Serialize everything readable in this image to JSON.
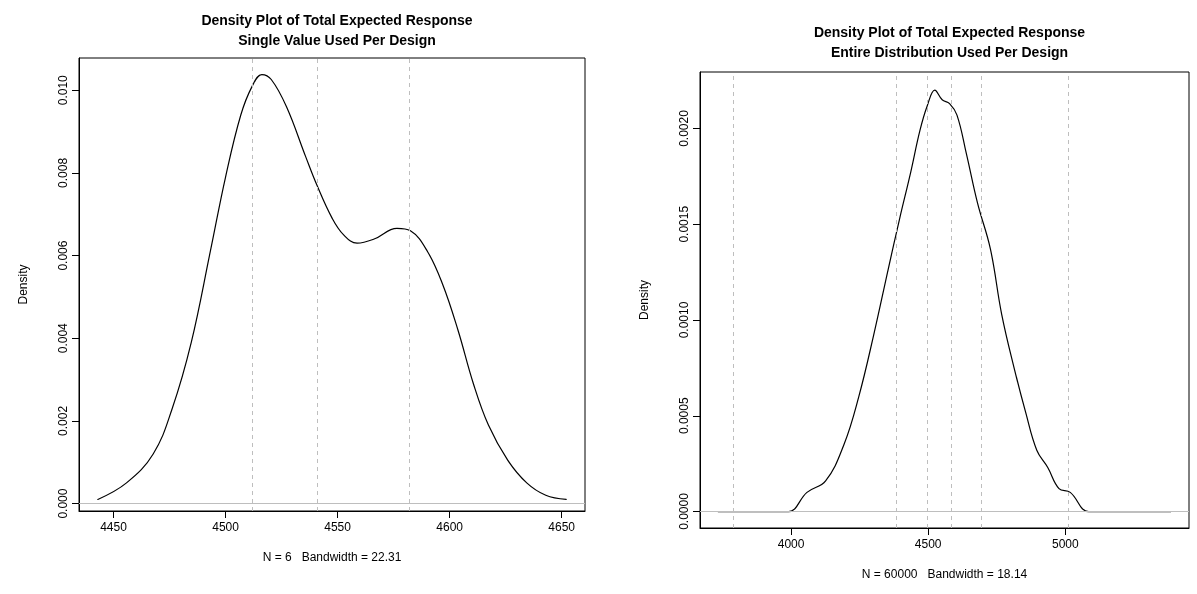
{
  "chart_data": [
    {
      "type": "line",
      "title": "Density Plot of Total Expected Response",
      "subtitle": "Single Value Used Per Design",
      "xlabel": "N = 6   Bandwidth = 22.31",
      "ylabel": "Density",
      "marker": "none",
      "line_style": "solid",
      "grid": false,
      "xlim": [
        4434.6,
        4660.4
      ],
      "xticks": [
        4450,
        4500,
        4550,
        4600,
        4650
      ],
      "ylim": [
        -0.00018,
        0.01078
      ],
      "yticks": [
        {
          "value": 0,
          "label": "0.000"
        },
        {
          "value": 0.002,
          "label": "0.002"
        },
        {
          "value": 0.004,
          "label": "0.004"
        },
        {
          "value": 0.006,
          "label": "0.006"
        },
        {
          "value": 0.008,
          "label": "0.008"
        },
        {
          "value": 0.01,
          "label": "0.010"
        }
      ],
      "ref_lines": [
        {
          "axis": "y",
          "value": 0,
          "color": "#bebebe",
          "line_style": "solid"
        },
        {
          "axis": "x",
          "value": 4512,
          "color": "#bebebe",
          "line_style": "dashed"
        },
        {
          "axis": "x",
          "value": 4541,
          "color": "#bebebe",
          "line_style": "dashed"
        },
        {
          "axis": "x",
          "value": 4582,
          "color": "#bebebe",
          "line_style": "dashed"
        }
      ],
      "series": [
        {
          "color": "#000000",
          "x": [
            4443,
            4455.8,
            4467.7,
            4476.2,
            4484.7,
            4493.2,
            4500,
            4506.8,
            4511.9,
            4516.2,
            4520.4,
            4527.2,
            4535.7,
            4540.8,
            4547.6,
            4552.7,
            4558.7,
            4566.3,
            4576.5,
            4582.5,
            4590.1,
            4596.9,
            4603.7,
            4610.6,
            4617.3,
            4625.9,
            4634.4,
            4642.9,
            4652
          ],
          "values": [
            0.0001,
            0.0005,
            0.0012,
            0.0023,
            0.0039,
            0.0061,
            0.0079,
            0.0094,
            0.0101,
            0.01038,
            0.01026,
            0.0096,
            0.0084,
            0.0077,
            0.0069,
            0.0065,
            0.0063,
            0.0064,
            0.00666,
            0.0066,
            0.0061,
            0.0053,
            0.0042,
            0.0029,
            0.0019,
            0.00105,
            0.0005,
            0.0002,
            0.0001
          ]
        }
      ]
    },
    {
      "type": "line",
      "title": "Density Plot of Total Expected Response",
      "subtitle": "Entire Distribution Used Per Design",
      "xlabel": "N = 60000   Bandwidth = 18.14",
      "ylabel": "Density",
      "marker": "none",
      "line_style": "solid",
      "grid": false,
      "xlim": [
        3668,
        5451
      ],
      "xticks": [
        4000,
        4500,
        5000
      ],
      "ylim": [
        -8.6e-05,
        0.002295
      ],
      "yticks": [
        {
          "value": 0,
          "label": "0.0000"
        },
        {
          "value": 0.0005,
          "label": "0.0005"
        },
        {
          "value": 0.001,
          "label": "0.0010"
        },
        {
          "value": 0.0015,
          "label": "0.0015"
        },
        {
          "value": 0.002,
          "label": "0.0020"
        }
      ],
      "ref_lines": [
        {
          "axis": "y",
          "value": 0,
          "color": "#bebebe",
          "line_style": "solid"
        },
        {
          "axis": "x",
          "value": 3788,
          "color": "#bebebe",
          "line_style": "dashed"
        },
        {
          "axis": "x",
          "value": 4385,
          "color": "#bebebe",
          "line_style": "dashed"
        },
        {
          "axis": "x",
          "value": 4497,
          "color": "#bebebe",
          "line_style": "dashed"
        },
        {
          "axis": "x",
          "value": 4585,
          "color": "#bebebe",
          "line_style": "dashed"
        },
        {
          "axis": "x",
          "value": 4693,
          "color": "#bebebe",
          "line_style": "dashed"
        },
        {
          "axis": "x",
          "value": 5012,
          "color": "#bebebe",
          "line_style": "dashed"
        }
      ],
      "series": [
        {
          "color": "#000000",
          "x": [
            3734,
            3909,
            3991,
            4058,
            4126,
            4193,
            4247,
            4301,
            4355,
            4396,
            4436,
            4470,
            4497,
            4524,
            4551,
            4578,
            4605,
            4639,
            4680,
            4727,
            4768,
            4815,
            4855,
            4896,
            4936,
            4977,
            5018,
            5085,
            5180,
            5385
          ],
          "values": [
            0,
            0,
            0,
            0.0001,
            0.00016,
            0.00035,
            0.0006,
            0.00092,
            0.00127,
            0.00153,
            0.00177,
            0.00199,
            0.00212,
            0.0022,
            0.00215,
            0.00213,
            0.00207,
            0.00187,
            0.00161,
            0.00137,
            0.00103,
            0.00074,
            0.00052,
            0.00032,
            0.00023,
            0.00012,
            0.0001,
            0,
            0,
            0
          ]
        }
      ]
    }
  ]
}
